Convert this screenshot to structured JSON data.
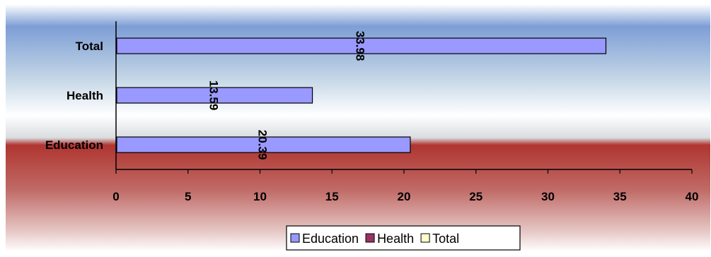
{
  "chart_data": {
    "type": "bar",
    "orientation": "horizontal",
    "categories": [
      "Education",
      "Health",
      "Total"
    ],
    "values": [
      20.39,
      13.59,
      33.98
    ],
    "data_labels": [
      "20.39",
      "13.59",
      "33.98"
    ],
    "xlim": [
      0,
      40
    ],
    "x_ticks": [
      "0",
      "5",
      "10",
      "15",
      "20",
      "25",
      "30",
      "35",
      "40"
    ],
    "grid": false,
    "legend": {
      "placement": "bottom",
      "entries": [
        {
          "name": "Education",
          "color": "#9999ff"
        },
        {
          "name": "Health",
          "color": "#993366"
        },
        {
          "name": "Total",
          "color": "#ffffcc"
        }
      ]
    },
    "bar_color": "#9999ff",
    "title": "",
    "xlabel": "",
    "ylabel": ""
  }
}
